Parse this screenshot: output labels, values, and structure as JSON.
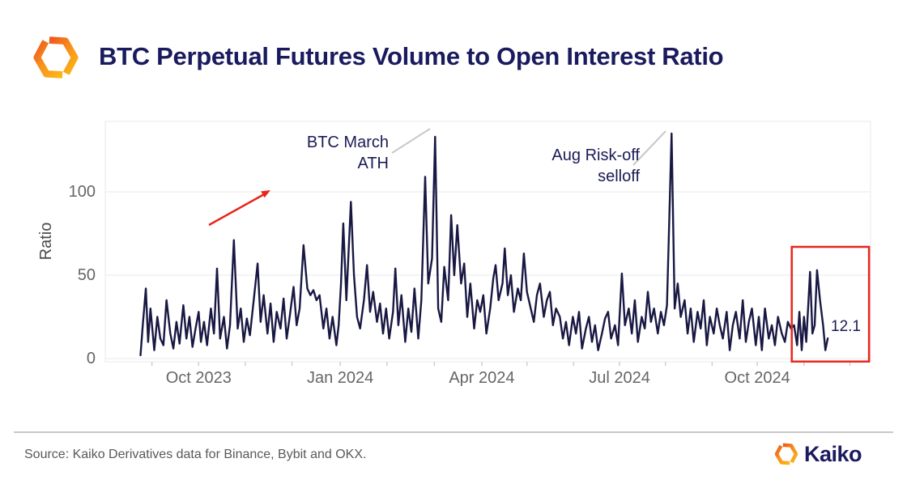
{
  "header": {
    "title": "BTC Perpetual Futures Volume to Open Interest Ratio"
  },
  "footer": {
    "source": "Source: Kaiko Derivatives data for Binance, Bybit and OKX.",
    "brand": "Kaiko"
  },
  "colors": {
    "line": "#181843",
    "title_navy": "#1a1a5f",
    "axis_text": "#666666",
    "grid": "#e8e8e8",
    "tick_mark": "#cfcfcf",
    "annotation_red": "#e8261b",
    "pointer_gray": "#c8c8c8",
    "logo_orange_dark": "#f0701d",
    "logo_orange_light": "#fcb813"
  },
  "chart_data": {
    "type": "line",
    "title": "BTC Perpetual Futures Volume to Open Interest Ratio",
    "xlabel": "",
    "ylabel": "Ratio",
    "y_ticks": [
      0,
      50,
      100
    ],
    "ylim": [
      -2,
      142
    ],
    "grid": "horizontal-only",
    "legend": "none",
    "x_ticks": [
      {
        "label": "Oct 2023",
        "f": 0.122
      },
      {
        "label": "Jan 2024",
        "f": 0.307
      },
      {
        "label": "Apr 2024",
        "f": 0.492
      },
      {
        "label": "Jul 2024",
        "f": 0.672
      },
      {
        "label": "Oct 2024",
        "f": 0.852
      }
    ],
    "x_minor_ticks_f": [
      0.061,
      0.122,
      0.183,
      0.244,
      0.307,
      0.368,
      0.43,
      0.492,
      0.551,
      0.612,
      0.672,
      0.732,
      0.793,
      0.852,
      0.913,
      0.973
    ],
    "series": [
      {
        "name": "BTC perpetual futures volume to open interest ratio",
        "points": [
          [
            0.046,
            2
          ],
          [
            0.049,
            20
          ],
          [
            0.053,
            42
          ],
          [
            0.056,
            10
          ],
          [
            0.059,
            30
          ],
          [
            0.064,
            5
          ],
          [
            0.068,
            25
          ],
          [
            0.072,
            12
          ],
          [
            0.076,
            8
          ],
          [
            0.08,
            35
          ],
          [
            0.085,
            15
          ],
          [
            0.089,
            6
          ],
          [
            0.093,
            22
          ],
          [
            0.097,
            9
          ],
          [
            0.102,
            32
          ],
          [
            0.106,
            12
          ],
          [
            0.11,
            25
          ],
          [
            0.114,
            7
          ],
          [
            0.118,
            18
          ],
          [
            0.122,
            28
          ],
          [
            0.125,
            10
          ],
          [
            0.129,
            22
          ],
          [
            0.133,
            8
          ],
          [
            0.138,
            30
          ],
          [
            0.142,
            15
          ],
          [
            0.146,
            54
          ],
          [
            0.15,
            12
          ],
          [
            0.155,
            25
          ],
          [
            0.159,
            6
          ],
          [
            0.163,
            20
          ],
          [
            0.168,
            71
          ],
          [
            0.173,
            18
          ],
          [
            0.177,
            30
          ],
          [
            0.181,
            10
          ],
          [
            0.185,
            24
          ],
          [
            0.189,
            14
          ],
          [
            0.194,
            35
          ],
          [
            0.199,
            57
          ],
          [
            0.203,
            22
          ],
          [
            0.207,
            38
          ],
          [
            0.212,
            15
          ],
          [
            0.216,
            33
          ],
          [
            0.22,
            10
          ],
          [
            0.224,
            28
          ],
          [
            0.229,
            18
          ],
          [
            0.233,
            36
          ],
          [
            0.237,
            12
          ],
          [
            0.241,
            25
          ],
          [
            0.246,
            43
          ],
          [
            0.25,
            20
          ],
          [
            0.254,
            30
          ],
          [
            0.259,
            68
          ],
          [
            0.264,
            42
          ],
          [
            0.268,
            38
          ],
          [
            0.272,
            41
          ],
          [
            0.276,
            35
          ],
          [
            0.28,
            38
          ],
          [
            0.285,
            18
          ],
          [
            0.289,
            30
          ],
          [
            0.293,
            12
          ],
          [
            0.297,
            25
          ],
          [
            0.302,
            8
          ],
          [
            0.305,
            20
          ],
          [
            0.308,
            45
          ],
          [
            0.311,
            81
          ],
          [
            0.315,
            35
          ],
          [
            0.321,
            94
          ],
          [
            0.325,
            50
          ],
          [
            0.329,
            25
          ],
          [
            0.333,
            18
          ],
          [
            0.338,
            35
          ],
          [
            0.342,
            56
          ],
          [
            0.346,
            28
          ],
          [
            0.35,
            40
          ],
          [
            0.355,
            22
          ],
          [
            0.359,
            33
          ],
          [
            0.363,
            15
          ],
          [
            0.367,
            30
          ],
          [
            0.371,
            12
          ],
          [
            0.376,
            28
          ],
          [
            0.379,
            54
          ],
          [
            0.383,
            20
          ],
          [
            0.387,
            38
          ],
          [
            0.392,
            10
          ],
          [
            0.396,
            30
          ],
          [
            0.4,
            16
          ],
          [
            0.404,
            42
          ],
          [
            0.409,
            12
          ],
          [
            0.413,
            35
          ],
          [
            0.418,
            109
          ],
          [
            0.422,
            45
          ],
          [
            0.427,
            60
          ],
          [
            0.431,
            133
          ],
          [
            0.435,
            30
          ],
          [
            0.439,
            22
          ],
          [
            0.443,
            55
          ],
          [
            0.448,
            35
          ],
          [
            0.452,
            86
          ],
          [
            0.456,
            50
          ],
          [
            0.46,
            80
          ],
          [
            0.465,
            45
          ],
          [
            0.469,
            57
          ],
          [
            0.473,
            25
          ],
          [
            0.477,
            45
          ],
          [
            0.482,
            18
          ],
          [
            0.486,
            35
          ],
          [
            0.49,
            28
          ],
          [
            0.494,
            38
          ],
          [
            0.498,
            15
          ],
          [
            0.503,
            30
          ],
          [
            0.507,
            48
          ],
          [
            0.51,
            56
          ],
          [
            0.514,
            35
          ],
          [
            0.519,
            45
          ],
          [
            0.522,
            66
          ],
          [
            0.526,
            38
          ],
          [
            0.53,
            50
          ],
          [
            0.534,
            28
          ],
          [
            0.539,
            42
          ],
          [
            0.543,
            35
          ],
          [
            0.547,
            63
          ],
          [
            0.551,
            40
          ],
          [
            0.556,
            30
          ],
          [
            0.56,
            22
          ],
          [
            0.564,
            38
          ],
          [
            0.568,
            45
          ],
          [
            0.573,
            25
          ],
          [
            0.577,
            35
          ],
          [
            0.581,
            40
          ],
          [
            0.585,
            20
          ],
          [
            0.589,
            30
          ],
          [
            0.594,
            25
          ],
          [
            0.598,
            12
          ],
          [
            0.602,
            22
          ],
          [
            0.606,
            8
          ],
          [
            0.611,
            25
          ],
          [
            0.615,
            15
          ],
          [
            0.619,
            28
          ],
          [
            0.623,
            6
          ],
          [
            0.628,
            18
          ],
          [
            0.632,
            25
          ],
          [
            0.636,
            10
          ],
          [
            0.64,
            20
          ],
          [
            0.644,
            5
          ],
          [
            0.649,
            15
          ],
          [
            0.653,
            24
          ],
          [
            0.657,
            28
          ],
          [
            0.661,
            12
          ],
          [
            0.666,
            20
          ],
          [
            0.67,
            8
          ],
          [
            0.675,
            51
          ],
          [
            0.679,
            20
          ],
          [
            0.684,
            30
          ],
          [
            0.688,
            15
          ],
          [
            0.692,
            35
          ],
          [
            0.696,
            10
          ],
          [
            0.701,
            25
          ],
          [
            0.705,
            18
          ],
          [
            0.709,
            40
          ],
          [
            0.713,
            22
          ],
          [
            0.717,
            30
          ],
          [
            0.722,
            15
          ],
          [
            0.726,
            28
          ],
          [
            0.73,
            20
          ],
          [
            0.734,
            32
          ],
          [
            0.74,
            135
          ],
          [
            0.744,
            30
          ],
          [
            0.748,
            45
          ],
          [
            0.752,
            25
          ],
          [
            0.757,
            35
          ],
          [
            0.761,
            15
          ],
          [
            0.765,
            30
          ],
          [
            0.769,
            10
          ],
          [
            0.774,
            28
          ],
          [
            0.778,
            18
          ],
          [
            0.782,
            35
          ],
          [
            0.786,
            8
          ],
          [
            0.79,
            25
          ],
          [
            0.795,
            15
          ],
          [
            0.799,
            30
          ],
          [
            0.803,
            20
          ],
          [
            0.807,
            12
          ],
          [
            0.812,
            28
          ],
          [
            0.816,
            5
          ],
          [
            0.82,
            20
          ],
          [
            0.824,
            28
          ],
          [
            0.829,
            12
          ],
          [
            0.833,
            35
          ],
          [
            0.837,
            10
          ],
          [
            0.841,
            22
          ],
          [
            0.845,
            30
          ],
          [
            0.85,
            8
          ],
          [
            0.854,
            25
          ],
          [
            0.858,
            5
          ],
          [
            0.862,
            30
          ],
          [
            0.867,
            12
          ],
          [
            0.871,
            20
          ],
          [
            0.875,
            8
          ],
          [
            0.879,
            25
          ],
          [
            0.884,
            15
          ],
          [
            0.888,
            10
          ],
          [
            0.892,
            22
          ],
          [
            0.896,
            18
          ],
          [
            0.9,
            20
          ],
          [
            0.904,
            8
          ],
          [
            0.907,
            28
          ],
          [
            0.91,
            5
          ],
          [
            0.913,
            25
          ],
          [
            0.916,
            10
          ],
          [
            0.921,
            52
          ],
          [
            0.924,
            15
          ],
          [
            0.927,
            20
          ],
          [
            0.93,
            53
          ],
          [
            0.934,
            35
          ],
          [
            0.938,
            20
          ],
          [
            0.941,
            5
          ],
          [
            0.944,
            12.1
          ]
        ]
      }
    ],
    "annotations": {
      "ath": {
        "lines": [
          "BTC March",
          "ATH"
        ]
      },
      "selloff": {
        "lines": [
          "Aug Risk-off",
          "selloff"
        ]
      },
      "last_value": "12.1",
      "highlight_box": {
        "f0": 0.897,
        "f1": 0.998,
        "v0": -1.8,
        "v1": 67
      }
    }
  }
}
